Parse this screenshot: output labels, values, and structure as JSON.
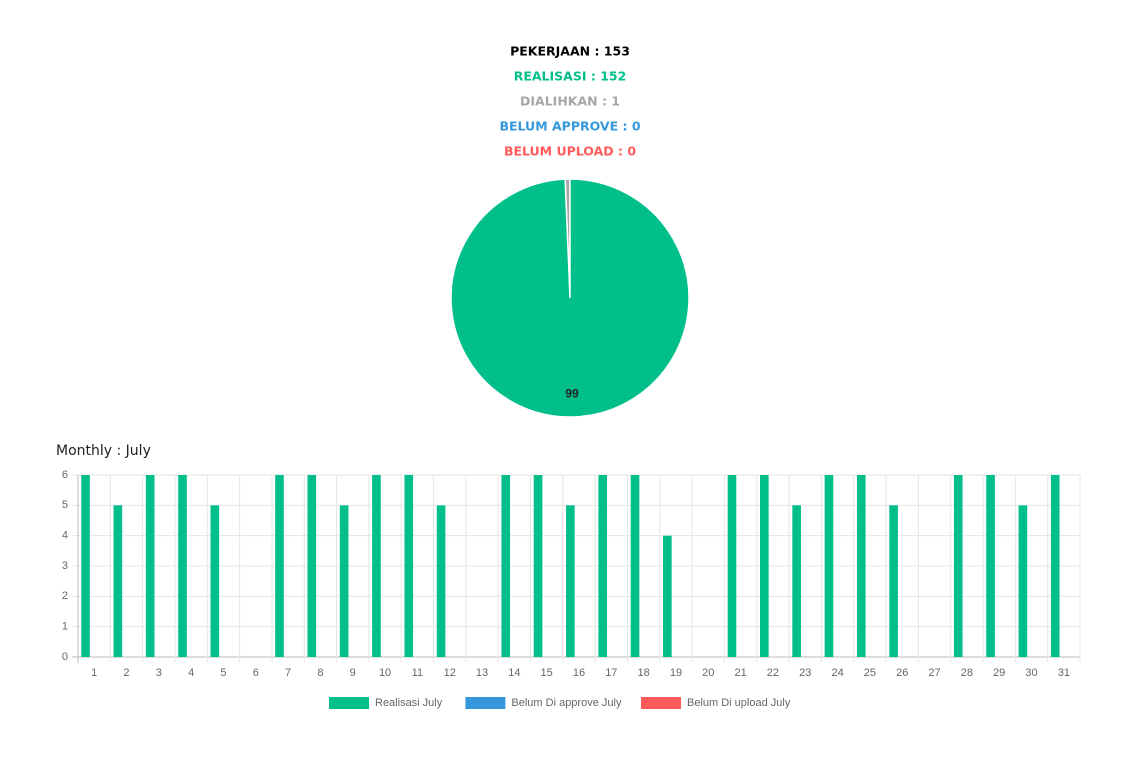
{
  "summary": [
    {
      "text": "PEKERJAAN : 153",
      "color": "#000000"
    },
    {
      "text": "REALISASI : 152",
      "color": "#00bf8a"
    },
    {
      "text": "DIALIHKAN : 1",
      "color": "#a6a6a6"
    },
    {
      "text": "BELUM APPROVE : 0",
      "color": "#3498db"
    },
    {
      "text": "BELUM UPLOAD : 0",
      "color": "#ff5a5a"
    }
  ],
  "chart_data": [
    {
      "type": "pie",
      "values": [
        99.35,
        0.65
      ],
      "value_labels": [
        "99",
        null
      ],
      "colors": [
        "#00bf8a",
        "#a6a6a6"
      ]
    },
    {
      "type": "bar",
      "title": "Monthly : July",
      "categories": [
        "1",
        "2",
        "3",
        "4",
        "5",
        "6",
        "7",
        "8",
        "9",
        "10",
        "11",
        "12",
        "13",
        "14",
        "15",
        "16",
        "17",
        "18",
        "19",
        "20",
        "21",
        "22",
        "23",
        "24",
        "25",
        "26",
        "27",
        "28",
        "29",
        "30",
        "31"
      ],
      "series": [
        {
          "name": "Realisasi July",
          "color": "#00bf8a",
          "values": [
            6,
            5,
            6,
            6,
            5,
            0,
            6,
            6,
            5,
            6,
            6,
            5,
            0,
            6,
            6,
            5,
            6,
            6,
            4,
            0,
            6,
            6,
            5,
            6,
            6,
            5,
            0,
            6,
            6,
            5,
            6
          ]
        },
        {
          "name": "Belum Di approve July",
          "color": "#3498db",
          "values": [
            0,
            0,
            0,
            0,
            0,
            0,
            0,
            0,
            0,
            0,
            0,
            0,
            0,
            0,
            0,
            0,
            0,
            0,
            0,
            0,
            0,
            0,
            0,
            0,
            0,
            0,
            0,
            0,
            0,
            0,
            0
          ]
        },
        {
          "name": "Belum Di upload July",
          "color": "#ff5a5a",
          "values": [
            0,
            0,
            0,
            0,
            0,
            0,
            0,
            0,
            0,
            0,
            0,
            0,
            0,
            0,
            0,
            0,
            0,
            0,
            0,
            0,
            0,
            0,
            0,
            0,
            0,
            0,
            0,
            0,
            0,
            0,
            0
          ]
        }
      ],
      "ylim": [
        0,
        6
      ],
      "yticks": [
        0,
        1,
        2,
        3,
        4,
        5,
        6
      ],
      "grid": true,
      "legend": "bottom"
    }
  ]
}
